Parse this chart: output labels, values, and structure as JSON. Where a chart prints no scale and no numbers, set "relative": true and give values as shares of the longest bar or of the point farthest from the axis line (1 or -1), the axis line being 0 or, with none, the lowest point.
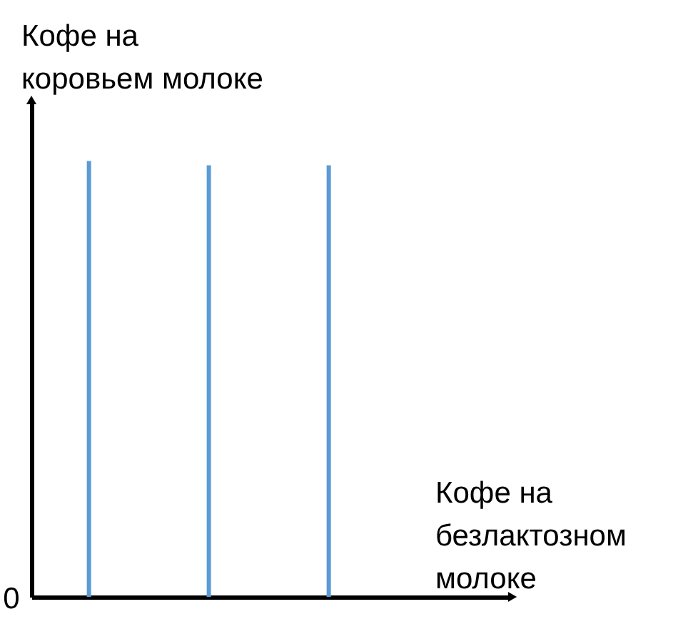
{
  "chart_data": {
    "type": "bar",
    "xlabel": "Кофе на безлактозном молоке",
    "ylabel": "Кофе на коровьем молоке",
    "categories": [
      null,
      null,
      null
    ],
    "values": [
      1,
      0.99,
      0.99
    ],
    "color": "#5b9bd5",
    "relative": true,
    "annotations": [
      "0"
    ]
  }
}
